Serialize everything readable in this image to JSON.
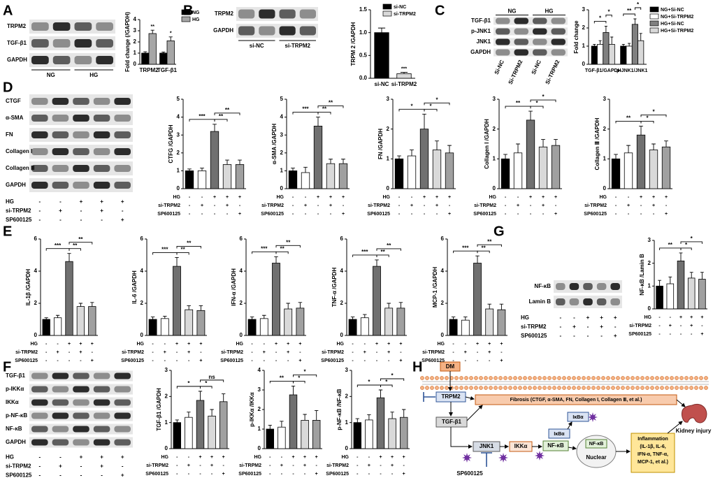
{
  "panels": [
    "A",
    "B",
    "C",
    "D",
    "E",
    "F",
    "G",
    "H"
  ],
  "treatments": {
    "labels": [
      "HG",
      "si-TRPM2",
      "SP600125"
    ],
    "signs": [
      [
        "-",
        "-",
        "+",
        "+",
        "+"
      ],
      [
        "-",
        "+",
        "-",
        "+",
        "-"
      ],
      [
        "-",
        "-",
        "-",
        "-",
        "+"
      ]
    ]
  },
  "blots": [
    {
      "rows": [
        "TRPM2",
        "TGF-β1",
        "GAPDH"
      ],
      "groups": [
        "NG",
        "HG"
      ]
    },
    {
      "rows": [
        "TRPM2",
        "GAPDH"
      ],
      "groups": [
        "si-NC",
        "si-TRPM2"
      ]
    },
    {
      "rows": [
        "TGF-β1",
        "p-JNK1",
        "JNK1",
        "GAPDH"
      ],
      "groups": [
        "NG",
        "HG"
      ],
      "lanes": [
        "Si-NC",
        "Si-TRPM2",
        "Si-NC",
        "Si-TRPM2"
      ]
    },
    {
      "rows": [
        "CTGF",
        "α-SMA",
        "FN",
        "Collagen I",
        "Collagen Ⅲ",
        "GAPDH"
      ]
    },
    {
      "rows": [
        "NF-κB",
        "Lamin B"
      ]
    },
    {
      "rows": [
        "TGF-β1",
        "p-IKKα",
        "IKKα",
        "p-NF-κB",
        "NF-κB",
        "GAPDH"
      ]
    }
  ],
  "chart_data": [
    {
      "type": "bar",
      "ylabel": "Fold change (/GAPDH)",
      "categories": [
        "TRPM2",
        "TGF-β1"
      ],
      "series": [
        {
          "name": "NG",
          "color": "#000000",
          "values": [
            1.0,
            1.0
          ],
          "errors": [
            0.12,
            0.1
          ]
        },
        {
          "name": "HG",
          "color": "#a6a6a6",
          "values": [
            2.75,
            2.1
          ],
          "errors": [
            0.3,
            0.35
          ]
        }
      ],
      "ylim": [
        0,
        4
      ],
      "yticks": [
        0,
        1,
        2,
        3,
        4
      ],
      "legend": "top-right",
      "annotations": [
        "**",
        "*"
      ]
    },
    {
      "type": "bar",
      "ylabel": "TRPM 2 /GAPDH",
      "categories": [
        "si-NC",
        "si-TRPM2"
      ],
      "values": [
        1.0,
        0.1
      ],
      "errors": [
        0.1,
        0.03
      ],
      "colors": [
        "#000000",
        "#d9d9d9"
      ],
      "ylim": [
        0,
        1.5
      ],
      "yticks": [
        {
          "value": 0,
          "label": "0.0"
        },
        {
          "value": 0.5,
          "label": "0.5"
        },
        {
          "value": 1,
          "label": "1.0"
        },
        {
          "value": 1.5,
          "label": "1.5"
        }
      ],
      "legend": "top-right",
      "annotations": [
        "***"
      ]
    },
    {
      "type": "bar",
      "ylabel": "Fold change",
      "categories": [
        "TGF-β1/GAPDH",
        "p-JNK1/JNK1"
      ],
      "series": [
        {
          "name": "NG+Si-NC",
          "color": "#000000",
          "values": [
            1.0,
            1.0
          ],
          "errors": [
            0.1,
            0.1
          ]
        },
        {
          "name": "NG+Si-TRPM2",
          "color": "#ffffff",
          "values": [
            1.1,
            1.0
          ],
          "errors": [
            0.2,
            0.15
          ]
        },
        {
          "name": "HG+Si-NC",
          "color": "#808080",
          "values": [
            1.75,
            2.2
          ],
          "errors": [
            0.35,
            0.3
          ]
        },
        {
          "name": "HG+Si-TRPM2",
          "color": "#d9d9d9",
          "values": [
            1.1,
            1.3
          ],
          "errors": [
            0.4,
            0.4
          ]
        }
      ],
      "ylim": [
        0,
        3
      ],
      "yticks": [
        0,
        1,
        2,
        3
      ],
      "legend": "top-right",
      "annotations": [
        "*",
        "*",
        "**",
        "*"
      ]
    },
    {
      "type": "bar",
      "ylabel": "CTFG /GAPDH",
      "values": [
        1,
        1,
        3.2,
        1.35,
        1.35
      ],
      "errors": [
        0.1,
        0.15,
        0.4,
        0.25,
        0.25
      ],
      "colors": [
        "#000000",
        "#ffffff",
        "#707070",
        "#d9d9d9",
        "#a0a0a0"
      ],
      "ylim": [
        0,
        5
      ],
      "yticks": [
        0,
        1,
        2,
        3,
        4,
        5
      ],
      "annotations": [
        "***",
        "**",
        "**"
      ]
    },
    {
      "type": "bar",
      "ylabel": "α-SMA /GAPDH",
      "values": [
        1,
        0.9,
        3.5,
        1.4,
        1.4
      ],
      "errors": [
        0.15,
        0.3,
        0.5,
        0.25,
        0.25
      ],
      "colors": [
        "#000000",
        "#ffffff",
        "#707070",
        "#d9d9d9",
        "#a0a0a0"
      ],
      "ylim": [
        0,
        5
      ],
      "yticks": [
        0,
        1,
        2,
        3,
        4,
        5
      ],
      "annotations": [
        "***",
        "**",
        "**"
      ]
    },
    {
      "type": "bar",
      "ylabel": "FN /GAPDH",
      "values": [
        1,
        1.1,
        2,
        1.3,
        1.2
      ],
      "errors": [
        0.1,
        0.2,
        0.5,
        0.3,
        0.25
      ],
      "colors": [
        "#000000",
        "#ffffff",
        "#707070",
        "#d9d9d9",
        "#a0a0a0"
      ],
      "ylim": [
        0,
        3
      ],
      "yticks": [
        0,
        1,
        2,
        3
      ],
      "annotations": [
        "*",
        "*",
        "*"
      ]
    },
    {
      "type": "bar",
      "ylabel": "Collagen I /GAPDH",
      "values": [
        1,
        1.2,
        2.3,
        1.4,
        1.45
      ],
      "errors": [
        0.15,
        0.3,
        0.3,
        0.25,
        0.2
      ],
      "colors": [
        "#000000",
        "#ffffff",
        "#707070",
        "#d9d9d9",
        "#a0a0a0"
      ],
      "ylim": [
        0,
        3
      ],
      "yticks": [
        0,
        1,
        2,
        3
      ],
      "annotations": [
        "**",
        "*",
        "*"
      ]
    },
    {
      "type": "bar",
      "ylabel": "Collagen Ⅲ /GAPDH",
      "values": [
        1,
        1.2,
        1.8,
        1.3,
        1.4
      ],
      "errors": [
        0.15,
        0.25,
        0.3,
        0.2,
        0.2
      ],
      "colors": [
        "#000000",
        "#ffffff",
        "#707070",
        "#d9d9d9",
        "#a0a0a0"
      ],
      "ylim": [
        0,
        3
      ],
      "yticks": [
        0,
        1,
        2,
        3
      ],
      "annotations": [
        "**",
        "*",
        "*"
      ]
    },
    {
      "type": "bar",
      "ylabel": "IL-1β /GAPDH",
      "values": [
        1,
        1.1,
        4.6,
        1.8,
        1.8
      ],
      "errors": [
        0.1,
        0.15,
        0.5,
        0.2,
        0.25
      ],
      "colors": [
        "#000000",
        "#ffffff",
        "#707070",
        "#d9d9d9",
        "#a0a0a0"
      ],
      "ylim": [
        0,
        6
      ],
      "yticks": [
        0,
        2,
        4,
        6
      ],
      "annotations": [
        "***",
        "**",
        "**"
      ]
    },
    {
      "type": "bar",
      "ylabel": "IL-6 /GAPDH",
      "values": [
        1,
        1.05,
        4.3,
        1.6,
        1.55
      ],
      "errors": [
        0.15,
        0.15,
        0.55,
        0.25,
        0.3
      ],
      "colors": [
        "#000000",
        "#ffffff",
        "#707070",
        "#d9d9d9",
        "#a0a0a0"
      ],
      "ylim": [
        0,
        6
      ],
      "yticks": [
        0,
        2,
        4,
        6
      ],
      "annotations": [
        "***",
        "**",
        "**"
      ]
    },
    {
      "type": "bar",
      "ylabel": "IFN-α /GAPDH",
      "values": [
        1,
        1.05,
        4.5,
        1.65,
        1.7
      ],
      "errors": [
        0.15,
        0.2,
        0.4,
        0.35,
        0.35
      ],
      "colors": [
        "#000000",
        "#ffffff",
        "#707070",
        "#d9d9d9",
        "#a0a0a0"
      ],
      "ylim": [
        0,
        6
      ],
      "yticks": [
        0,
        2,
        4,
        6
      ],
      "annotations": [
        "***",
        "**",
        "**"
      ]
    },
    {
      "type": "bar",
      "ylabel": "TNF-α /GAPDH",
      "values": [
        1,
        1.1,
        4.3,
        1.7,
        1.7
      ],
      "errors": [
        0.15,
        0.2,
        0.4,
        0.3,
        0.35
      ],
      "colors": [
        "#000000",
        "#ffffff",
        "#707070",
        "#d9d9d9",
        "#a0a0a0"
      ],
      "ylim": [
        0,
        6
      ],
      "yticks": [
        0,
        2,
        4,
        6
      ],
      "annotations": [
        "***",
        "**",
        "**"
      ]
    },
    {
      "type": "bar",
      "ylabel": "MCP-1 /GAPDH",
      "values": [
        1,
        0.95,
        4.5,
        1.65,
        1.6
      ],
      "errors": [
        0.15,
        0.2,
        0.45,
        0.3,
        0.35
      ],
      "colors": [
        "#000000",
        "#ffffff",
        "#707070",
        "#d9d9d9",
        "#a0a0a0"
      ],
      "ylim": [
        0,
        6
      ],
      "yticks": [
        0,
        2,
        4,
        6
      ],
      "annotations": [
        "***",
        "**",
        "**"
      ]
    },
    {
      "type": "bar",
      "ylabel": "NF-κB /Lamin B",
      "values": [
        1,
        1.1,
        2.1,
        1.35,
        1.3
      ],
      "errors": [
        0.25,
        0.3,
        0.35,
        0.25,
        0.3
      ],
      "colors": [
        "#000000",
        "#ffffff",
        "#707070",
        "#d9d9d9",
        "#a0a0a0"
      ],
      "ylim": [
        0,
        3
      ],
      "yticks": [
        0,
        1,
        2,
        3
      ],
      "annotations": [
        "**",
        "*",
        "*"
      ]
    },
    {
      "type": "bar",
      "ylabel": "TGF-β1 /GAPDH",
      "values": [
        1,
        1.2,
        1.85,
        1.25,
        1.8
      ],
      "errors": [
        0.1,
        0.2,
        0.35,
        0.25,
        0.3
      ],
      "colors": [
        "#000000",
        "#ffffff",
        "#707070",
        "#d9d9d9",
        "#a0a0a0"
      ],
      "ylim": [
        0,
        3
      ],
      "yticks": [
        0,
        1,
        2,
        3
      ],
      "annotations": [
        "*",
        "*",
        "ns"
      ]
    },
    {
      "type": "bar",
      "ylabel": "p-IKKα /IKKα",
      "values": [
        1,
        1.1,
        2.75,
        1.45,
        1.45
      ],
      "errors": [
        0.2,
        0.3,
        0.45,
        0.3,
        0.5
      ],
      "colors": [
        "#000000",
        "#ffffff",
        "#707070",
        "#d9d9d9",
        "#a0a0a0"
      ],
      "ylim": [
        0,
        4
      ],
      "yticks": [
        0,
        1,
        2,
        3,
        4
      ],
      "annotations": [
        "**",
        "*",
        "*"
      ]
    },
    {
      "type": "bar",
      "ylabel": "p-NF-κB /NF-κB",
      "values": [
        1,
        1.1,
        1.95,
        1.15,
        1.2
      ],
      "errors": [
        0.15,
        0.2,
        0.3,
        0.25,
        0.3
      ],
      "colors": [
        "#000000",
        "#ffffff",
        "#707070",
        "#d9d9d9",
        "#a0a0a0"
      ],
      "ylim": [
        0,
        3
      ],
      "yticks": [
        0,
        1,
        2,
        3
      ],
      "annotations": [
        "*",
        "*",
        "*"
      ]
    }
  ],
  "diagram": {
    "dm": "DM",
    "trpm2": "TRPM2",
    "tgf": "TGF-β1",
    "fibrosis": "Fibrosis (CTGF, α-SMA, FN, Collagen I, Collagen Ⅲ, et al.)",
    "jnk1": "JNK1",
    "ikka": "IKKα",
    "nfkb": "NF-κB",
    "ikba": "IκBα",
    "ikba_free": "IκBα",
    "nfkb_nuclear": "NF-κB",
    "nuclear": "Nuclear",
    "inflammation": [
      "Inflammation",
      "(IL-1β, IL-6,",
      "IFN-α, TNF-α,",
      "MCP-1, et al.)"
    ],
    "kidney": "Kidney injury",
    "inhibitor": "SP600125"
  }
}
